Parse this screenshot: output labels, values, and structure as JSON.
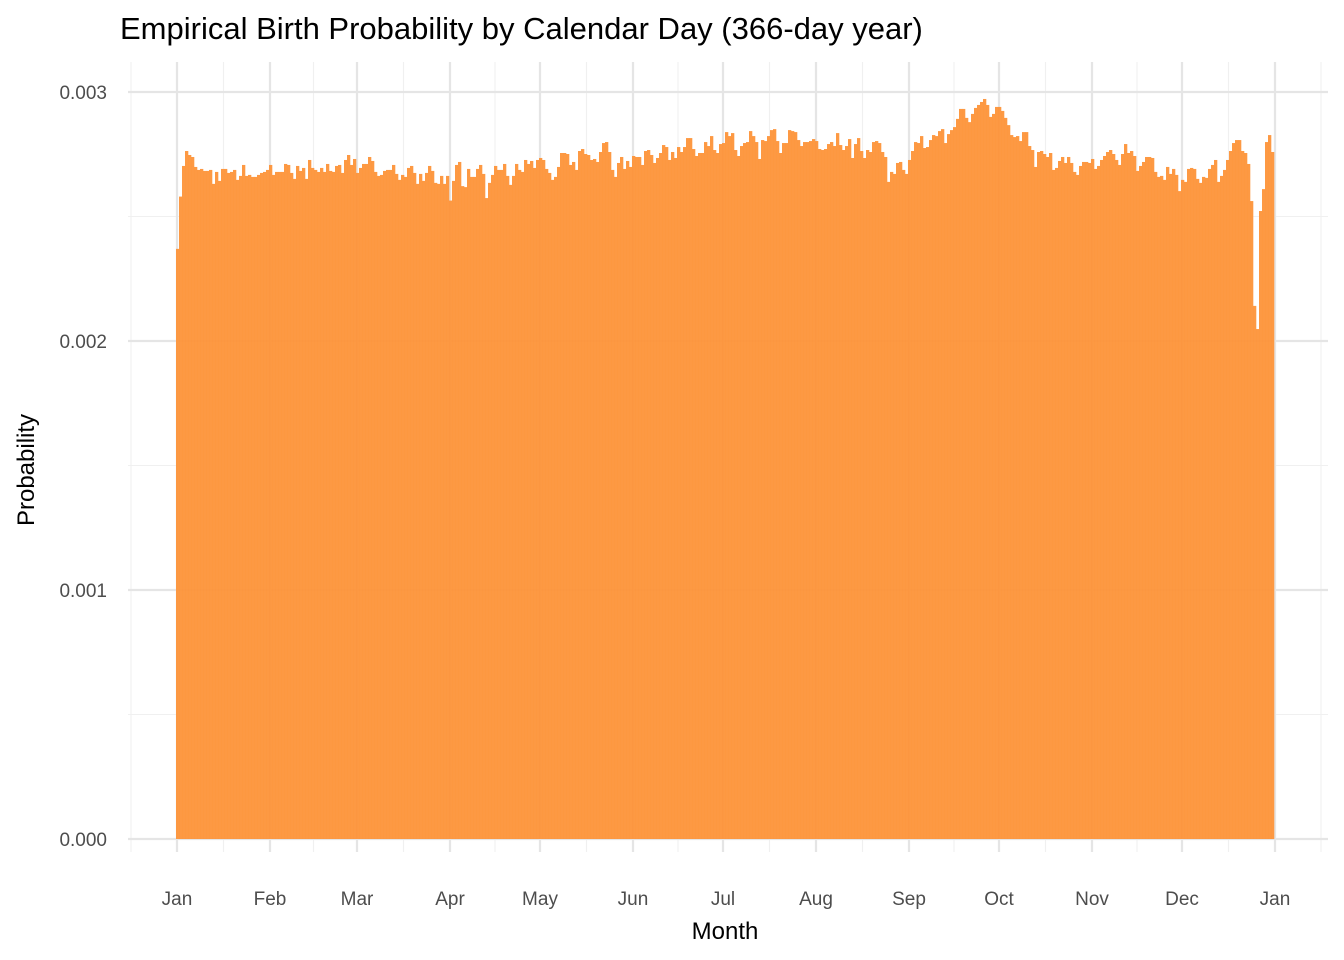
{
  "chart_data": {
    "type": "bar",
    "title": "Empirical Birth Probability by Calendar Day (366-day year)",
    "xlabel": "Month",
    "ylabel": "Probability",
    "ylim": [
      0,
      0.0031
    ],
    "grid": true,
    "legend": "none",
    "bar_color": "#FD9339",
    "y_ticks": [
      {
        "value": 0,
        "label": "0.000"
      },
      {
        "value": 0.001,
        "label": "0.001"
      },
      {
        "value": 0.002,
        "label": "0.002"
      },
      {
        "value": 0.003,
        "label": "0.003"
      }
    ],
    "x_ticks": [
      {
        "day": 0,
        "label": "Jan"
      },
      {
        "day": 31,
        "label": "Feb"
      },
      {
        "day": 60,
        "label": "Mar"
      },
      {
        "day": 91,
        "label": "Apr"
      },
      {
        "day": 121,
        "label": "May"
      },
      {
        "day": 152,
        "label": "Jun"
      },
      {
        "day": 182,
        "label": "Jul"
      },
      {
        "day": 213,
        "label": "Aug"
      },
      {
        "day": 244,
        "label": "Sep"
      },
      {
        "day": 274,
        "label": "Oct"
      },
      {
        "day": 305,
        "label": "Nov"
      },
      {
        "day": 335,
        "label": "Dec"
      },
      {
        "day": 366,
        "label": "Jan"
      }
    ],
    "values": [
      0.00237,
      0.00258,
      0.002703,
      0.002763,
      0.002747,
      0.002739,
      0.002699,
      0.002687,
      0.002691,
      0.002683,
      0.002683,
      0.002687,
      0.002631,
      0.002679,
      0.002643,
      0.002691,
      0.002691,
      0.002675,
      0.002679,
      0.002687,
      0.002647,
      0.002663,
      0.002707,
      0.002663,
      0.002667,
      0.002659,
      0.002659,
      0.002667,
      0.002675,
      0.002679,
      0.002687,
      0.002707,
      0.002667,
      0.002679,
      0.002679,
      0.002679,
      0.002711,
      0.002707,
      0.002675,
      0.002651,
      0.002703,
      0.002683,
      0.002695,
      0.002651,
      0.002727,
      0.002695,
      0.002687,
      0.002679,
      0.002695,
      0.002679,
      0.002711,
      0.002683,
      0.002679,
      0.002703,
      0.002707,
      0.002675,
      0.002727,
      0.002747,
      0.002707,
      0.002731,
      0.002675,
      0.002695,
      0.002711,
      0.002711,
      0.002739,
      0.002723,
      0.002679,
      0.002663,
      0.002667,
      0.002683,
      0.002687,
      0.002687,
      0.002707,
      0.002671,
      0.002647,
      0.002667,
      0.002659,
      0.002695,
      0.002703,
      0.002675,
      0.002631,
      0.002671,
      0.002643,
      0.002675,
      0.002703,
      0.002683,
      0.002635,
      0.002631,
      0.002663,
      0.002631,
      0.002663,
      0.002564,
      0.002643,
      0.002707,
      0.002719,
      0.002622,
      0.002618,
      0.002691,
      0.002659,
      0.002659,
      0.002691,
      0.002707,
      0.002671,
      0.002574,
      0.002635,
      0.002667,
      0.002703,
      0.002687,
      0.002687,
      0.002711,
      0.002663,
      0.002627,
      0.002663,
      0.002711,
      0.002687,
      0.002679,
      0.002727,
      0.002711,
      0.002723,
      0.002695,
      0.002727,
      0.002735,
      0.002727,
      0.002691,
      0.002675,
      0.002647,
      0.002659,
      0.002699,
      0.002755,
      0.002755,
      0.002751,
      0.002707,
      0.002719,
      0.002687,
      0.002763,
      0.002771,
      0.002751,
      0.002747,
      0.002727,
      0.002731,
      0.002719,
      0.002759,
      0.002795,
      0.002799,
      0.002759,
      0.002687,
      0.002659,
      0.002715,
      0.002739,
      0.002691,
      0.002723,
      0.002699,
      0.002743,
      0.002739,
      0.002739,
      0.002707,
      0.002763,
      0.002767,
      0.002747,
      0.002715,
      0.002735,
      0.002755,
      0.002787,
      0.002779,
      0.002727,
      0.002759,
      0.002735,
      0.002779,
      0.002759,
      0.002779,
      0.002815,
      0.002815,
      0.002771,
      0.002743,
      0.002755,
      0.002755,
      0.002799,
      0.002783,
      0.002823,
      0.002767,
      0.002755,
      0.002791,
      0.002795,
      0.002839,
      0.002823,
      0.002835,
      0.002767,
      0.002743,
      0.002783,
      0.002795,
      0.002799,
      0.002843,
      0.002823,
      0.002799,
      0.002731,
      0.002807,
      0.002803,
      0.002823,
      0.002847,
      0.002851,
      0.002803,
      0.002755,
      0.002795,
      0.002795,
      0.002847,
      0.002843,
      0.002839,
      0.002807,
      0.002783,
      0.002799,
      0.002799,
      0.002803,
      0.002811,
      0.002803,
      0.002771,
      0.002767,
      0.002771,
      0.002791,
      0.002799,
      0.002783,
      0.002835,
      0.002787,
      0.002767,
      0.002783,
      0.002811,
      0.002735,
      0.002791,
      0.002815,
      0.002763,
      0.002735,
      0.002767,
      0.002759,
      0.002799,
      0.002803,
      0.002795,
      0.002759,
      0.002739,
      0.002639,
      0.002679,
      0.002671,
      0.002715,
      0.002719,
      0.002687,
      0.002671,
      0.002727,
      0.002763,
      0.002799,
      0.002795,
      0.002823,
      0.002775,
      0.002779,
      0.002807,
      0.002827,
      0.002823,
      0.002843,
      0.002851,
      0.002795,
      0.002831,
      0.002847,
      0.002859,
      0.002892,
      0.002932,
      0.002932,
      0.002896,
      0.002879,
      0.002912,
      0.002936,
      0.002948,
      0.00296,
      0.002972,
      0.002948,
      0.0029,
      0.002912,
      0.00294,
      0.00294,
      0.002924,
      0.002896,
      0.002867,
      0.002827,
      0.002819,
      0.002823,
      0.002803,
      0.002839,
      0.002839,
      0.002783,
      0.002767,
      0.002699,
      0.002759,
      0.002763,
      0.002751,
      0.002739,
      0.002755,
      0.002687,
      0.002695,
      0.002723,
      0.002739,
      0.002715,
      0.002739,
      0.002715,
      0.002679,
      0.002667,
      0.002703,
      0.002719,
      0.002719,
      0.002715,
      0.002731,
      0.002691,
      0.002703,
      0.002727,
      0.002743,
      0.002759,
      0.002767,
      0.002751,
      0.002727,
      0.002707,
      0.002751,
      0.002791,
      0.002755,
      0.002763,
      0.002743,
      0.002683,
      0.002703,
      0.002719,
      0.002739,
      0.002739,
      0.002735,
      0.002679,
      0.002659,
      0.002663,
      0.002647,
      0.002699,
      0.002671,
      0.002691,
      0.002667,
      0.002602,
      0.002647,
      0.002639,
      0.002691,
      0.002695,
      0.002691,
      0.002651,
      0.002635,
      0.002659,
      0.002655,
      0.002691,
      0.002707,
      0.002727,
      0.002639,
      0.002663,
      0.002687,
      0.002727,
      0.002763,
      0.002795,
      0.002807,
      0.002807,
      0.002763,
      0.002755,
      0.002711,
      0.002562,
      0.002141,
      0.002048,
      0.002522,
      0.00261,
      0.002799,
      0.002827,
      0.002759
    ]
  }
}
